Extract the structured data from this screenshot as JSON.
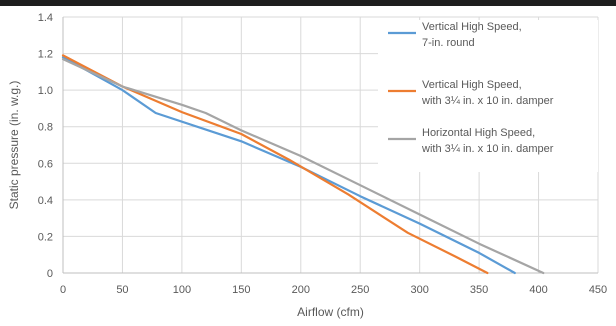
{
  "chart_data": {
    "type": "line",
    "title": "",
    "xlabel": "Airflow (cfm)",
    "ylabel": "Static pressure (in. w.g.)",
    "xlim": [
      0,
      450
    ],
    "ylim": [
      0,
      1.4
    ],
    "xticks": [
      0,
      50,
      100,
      150,
      200,
      250,
      300,
      350,
      400,
      450
    ],
    "yticks": [
      0,
      0.2,
      0.4,
      0.6,
      0.8,
      1.0,
      1.2,
      1.4
    ],
    "xtick_labels": [
      "0",
      "50",
      "100",
      "150",
      "200",
      "250",
      "300",
      "350",
      "400",
      "450"
    ],
    "ytick_labels": [
      "0",
      "0.2",
      "0.4",
      "0.6",
      "0.8",
      "1.0",
      "1.2",
      "1.4"
    ],
    "grid": true,
    "legend_position": "right",
    "series": [
      {
        "name_lines": [
          "Vertical High Speed,",
          "7-in. round"
        ],
        "color": "#5b9bd5",
        "points": [
          [
            0,
            1.18
          ],
          [
            50,
            1.0
          ],
          [
            78,
            0.875
          ],
          [
            150,
            0.72
          ],
          [
            200,
            0.58
          ],
          [
            250,
            0.42
          ],
          [
            300,
            0.27
          ],
          [
            350,
            0.11
          ],
          [
            380,
            0.0
          ]
        ]
      },
      {
        "name_lines": [
          "Vertical High Speed,",
          "with 3¼ in. x 10 in. damper"
        ],
        "color": "#ed7d31",
        "points": [
          [
            0,
            1.19
          ],
          [
            50,
            1.02
          ],
          [
            100,
            0.88
          ],
          [
            150,
            0.76
          ],
          [
            190,
            0.62
          ],
          [
            240,
            0.43
          ],
          [
            290,
            0.22
          ],
          [
            330,
            0.09
          ],
          [
            357,
            0.0
          ]
        ]
      },
      {
        "name_lines": [
          "Horizontal High Speed,",
          "with 3¼ in. x 10 in. damper"
        ],
        "color": "#a5a5a5",
        "points": [
          [
            0,
            1.17
          ],
          [
            50,
            1.02
          ],
          [
            100,
            0.92
          ],
          [
            120,
            0.875
          ],
          [
            150,
            0.78
          ],
          [
            200,
            0.64
          ],
          [
            250,
            0.48
          ],
          [
            300,
            0.32
          ],
          [
            350,
            0.16
          ],
          [
            404,
            0.0
          ]
        ]
      }
    ]
  }
}
